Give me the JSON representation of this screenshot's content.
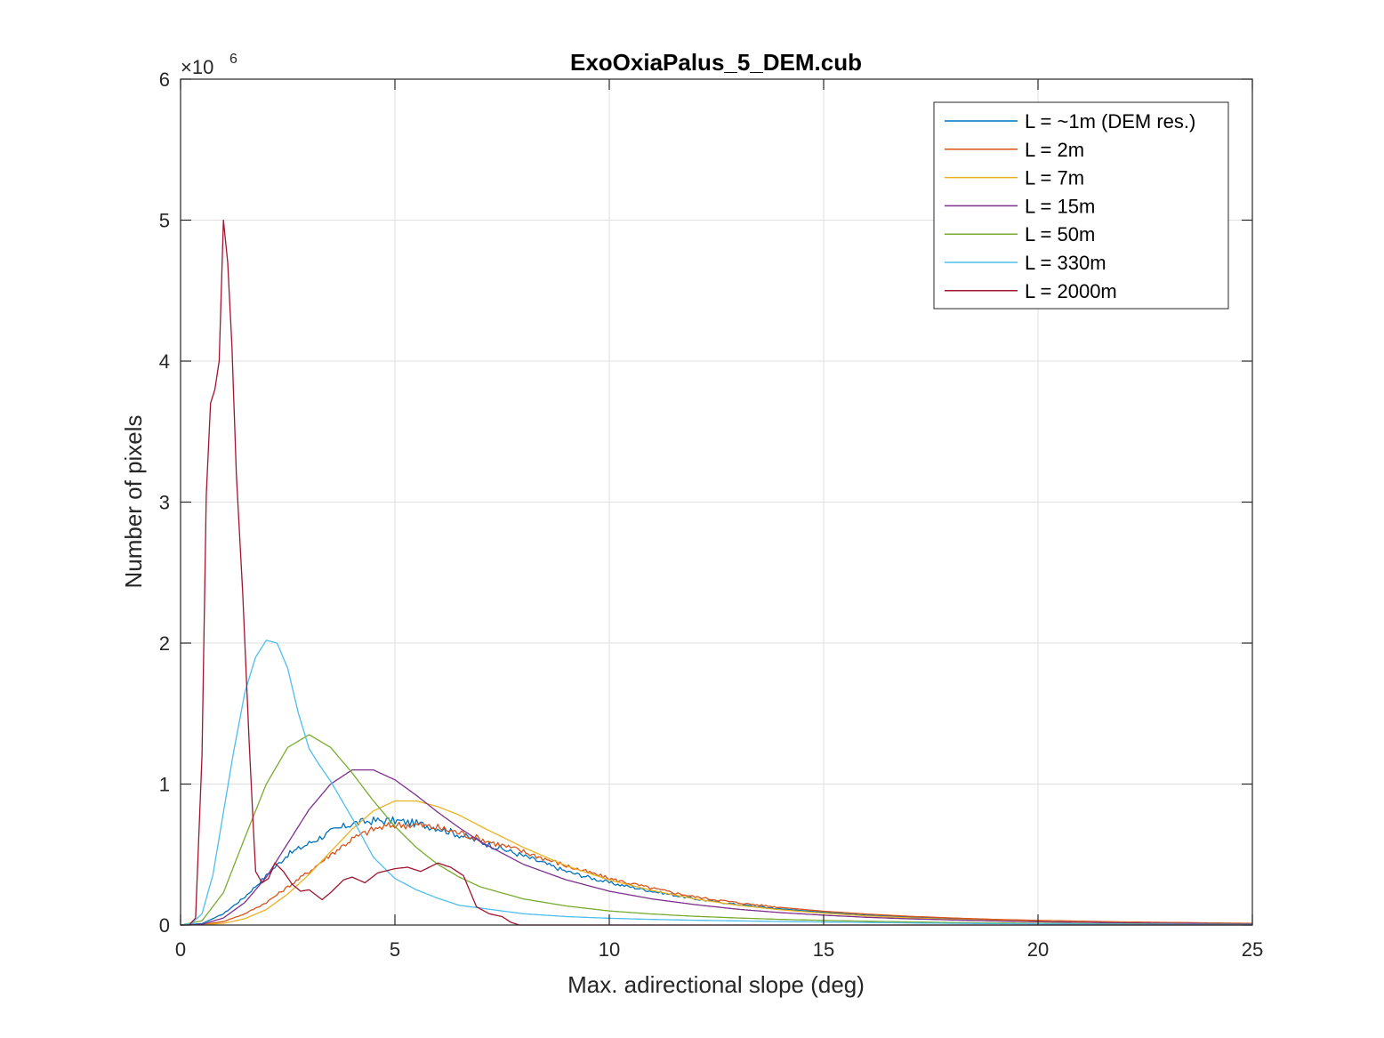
{
  "chart_data": {
    "type": "line",
    "title": "ExoOxiaPalus_5_DEM.cub",
    "xlabel": "Max. adirectional slope (deg)",
    "ylabel": "Number of pixels",
    "xlim": [
      0,
      25
    ],
    "ylim": [
      0,
      6000000
    ],
    "y_exponent_base": "×10",
    "y_exponent_power": "6",
    "xticks": [
      0,
      5,
      10,
      15,
      20,
      25
    ],
    "xtick_labels": [
      "0",
      "5",
      "10",
      "15",
      "20",
      "25"
    ],
    "yticks": [
      0,
      1000000,
      2000000,
      3000000,
      4000000,
      5000000,
      6000000
    ],
    "ytick_labels": [
      "0",
      "1",
      "2",
      "3",
      "4",
      "5",
      "6"
    ],
    "grid": true,
    "legend_position": "top-right",
    "series": [
      {
        "name": "L = ~1m (DEM res.)",
        "color": "#0072BD",
        "jagged": true,
        "x": [
          0,
          0.5,
          1,
          1.5,
          2,
          2.5,
          3,
          3.5,
          4,
          4.5,
          5,
          5.5,
          6,
          6.5,
          7,
          8,
          9,
          10,
          11,
          12,
          13,
          14,
          15,
          16,
          17,
          18,
          19,
          20,
          22,
          25
        ],
        "y": [
          0,
          10000,
          80000,
          200000,
          350000,
          500000,
          580000,
          660000,
          720000,
          740000,
          740000,
          720000,
          690000,
          640000,
          590000,
          490000,
          380000,
          300000,
          240000,
          185000,
          145000,
          115000,
          90000,
          70000,
          56000,
          44000,
          35000,
          28000,
          18000,
          10000
        ]
      },
      {
        "name": "L = 2m",
        "color": "#D95319",
        "jagged": true,
        "x": [
          0,
          0.5,
          1,
          1.5,
          2,
          2.5,
          3,
          3.5,
          4,
          4.5,
          5,
          5.5,
          6,
          6.5,
          7,
          8,
          9,
          10,
          11,
          12,
          13,
          14,
          15,
          16,
          17,
          18,
          19,
          20,
          22,
          25
        ],
        "y": [
          0,
          3000,
          25000,
          80000,
          160000,
          270000,
          380000,
          500000,
          610000,
          680000,
          710000,
          710000,
          690000,
          655000,
          610000,
          520000,
          420000,
          330000,
          260000,
          200000,
          158000,
          125000,
          98000,
          78000,
          62000,
          50000,
          40000,
          33000,
          22000,
          12000
        ]
      },
      {
        "name": "L = 7m",
        "color": "#EDB120",
        "jagged": false,
        "x": [
          0,
          0.5,
          1,
          1.5,
          2,
          2.5,
          3,
          3.5,
          4,
          4.5,
          5,
          5.5,
          6,
          6.5,
          7,
          8,
          9,
          10,
          11,
          12,
          13,
          14,
          15,
          16,
          17,
          18,
          19,
          20,
          22,
          25
        ],
        "y": [
          0,
          2000,
          12000,
          45000,
          110000,
          220000,
          360000,
          520000,
          680000,
          810000,
          880000,
          880000,
          840000,
          780000,
          700000,
          550000,
          420000,
          320000,
          245000,
          185000,
          140000,
          108000,
          84000,
          65000,
          51000,
          40000,
          32000,
          25000,
          16000,
          8000
        ]
      },
      {
        "name": "L = 15m",
        "color": "#7E2F8E",
        "jagged": false,
        "x": [
          0,
          0.5,
          1,
          1.5,
          2,
          2.5,
          3,
          3.5,
          4,
          4.5,
          5,
          5.5,
          6,
          6.5,
          7,
          8,
          9,
          10,
          11,
          12,
          13,
          14,
          15,
          16,
          17,
          18,
          19,
          20,
          22,
          25
        ],
        "y": [
          0,
          5000,
          50000,
          160000,
          340000,
          580000,
          820000,
          1000000,
          1100000,
          1100000,
          1030000,
          920000,
          800000,
          690000,
          590000,
          430000,
          320000,
          240000,
          185000,
          145000,
          112000,
          88000,
          70000,
          55000,
          44000,
          36000,
          29000,
          23000,
          15000,
          8000
        ]
      },
      {
        "name": "L = 50m",
        "color": "#77AC30",
        "jagged": false,
        "x": [
          0,
          0.5,
          1,
          1.5,
          2,
          2.5,
          3,
          3.5,
          4,
          4.5,
          5,
          5.5,
          6,
          6.5,
          7,
          8,
          9,
          10,
          11,
          12,
          13,
          14,
          15,
          16,
          17,
          18,
          19,
          20,
          22,
          25
        ],
        "y": [
          0,
          30000,
          230000,
          620000,
          1000000,
          1260000,
          1350000,
          1260000,
          1080000,
          880000,
          700000,
          550000,
          430000,
          340000,
          270000,
          185000,
          135000,
          100000,
          78000,
          62000,
          50000,
          40000,
          33000,
          27000,
          22000,
          18000,
          15000,
          12000,
          8000,
          4000
        ]
      },
      {
        "name": "L = 330m",
        "color": "#4DBEEE",
        "jagged": false,
        "x": [
          0,
          0.25,
          0.5,
          0.75,
          1,
          1.25,
          1.5,
          1.75,
          2,
          2.25,
          2.5,
          2.75,
          3,
          3.25,
          3.5,
          4,
          4.5,
          5,
          5.5,
          6,
          6.5,
          7,
          7.5,
          8,
          9,
          10,
          11,
          12,
          14,
          16,
          18,
          20,
          25
        ],
        "y": [
          0,
          10000,
          80000,
          350000,
          800000,
          1250000,
          1650000,
          1900000,
          2020000,
          2000000,
          1820000,
          1500000,
          1250000,
          1130000,
          1020000,
          760000,
          480000,
          330000,
          250000,
          190000,
          140000,
          120000,
          100000,
          80000,
          60000,
          48000,
          40000,
          34000,
          25000,
          18000,
          12000,
          8000,
          3000
        ]
      },
      {
        "name": "L = 2000m",
        "color": "#A2142F",
        "jagged": false,
        "x": [
          0,
          0.2,
          0.35,
          0.5,
          0.6,
          0.7,
          0.8,
          0.9,
          1.0,
          1.1,
          1.2,
          1.3,
          1.45,
          1.6,
          1.75,
          1.9,
          2.05,
          2.2,
          2.4,
          2.6,
          2.8,
          3.0,
          3.3,
          3.5,
          3.8,
          4.0,
          4.3,
          4.6,
          5.0,
          5.3,
          5.6,
          6.0,
          6.3,
          6.6,
          6.9,
          7.2,
          7.5,
          7.7,
          7.9,
          8.5,
          10,
          15,
          25
        ],
        "y": [
          0,
          0,
          50000,
          1200000,
          3050000,
          3700000,
          3800000,
          4000000,
          5000000,
          4700000,
          4100000,
          3200000,
          2350000,
          1300000,
          380000,
          300000,
          330000,
          440000,
          380000,
          290000,
          240000,
          250000,
          180000,
          230000,
          320000,
          340000,
          300000,
          370000,
          400000,
          410000,
          380000,
          440000,
          410000,
          350000,
          130000,
          80000,
          60000,
          20000,
          0,
          0,
          0,
          0,
          0
        ]
      }
    ]
  }
}
